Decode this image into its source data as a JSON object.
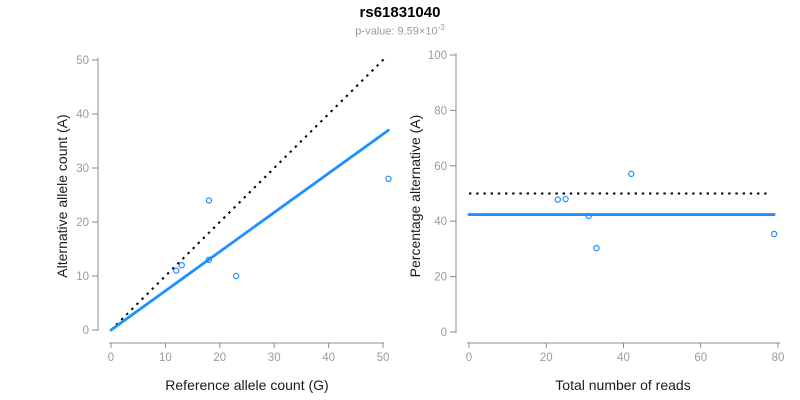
{
  "colors": {
    "accent_blue": "#1E90FF",
    "dotted_line": "#000000",
    "axis_line": "#8C8C8C",
    "tick_label": "#9B9B9B",
    "axis_title": "#1A1A1A",
    "title": "#000000",
    "subtitle": "#9B9B9B"
  },
  "chart_data": [
    {
      "type": "scatter",
      "title": "rs61831040",
      "subtitle_text": "p-value: 9.59×10",
      "subtitle_exponent": "-3",
      "xlabel": "Reference allele count (G)",
      "ylabel": "Alternative allele count (A)",
      "xlim": [
        0,
        50
      ],
      "ylim": [
        0,
        50
      ],
      "xticks": [
        0,
        10,
        20,
        30,
        40,
        50
      ],
      "yticks": [
        0,
        10,
        20,
        30,
        40,
        50
      ],
      "grid": false,
      "legend": null,
      "points": [
        [
          12,
          11
        ],
        [
          13,
          12
        ],
        [
          18,
          13
        ],
        [
          18,
          24
        ],
        [
          23,
          10
        ],
        [
          51,
          28
        ]
      ],
      "lines": [
        {
          "name": "identity-line",
          "style": "dotted",
          "color_key": "dotted_line",
          "x1": 0,
          "y1": 0,
          "x2": 50.7,
          "y2": 50.7
        },
        {
          "name": "fit-line",
          "style": "solid",
          "color_key": "accent_blue",
          "x1": 0,
          "y1": 0,
          "x2": 51,
          "y2": 37
        }
      ]
    },
    {
      "type": "scatter",
      "xlabel": "Total number of reads",
      "ylabel": "Percentage alternative (A)",
      "xlim": [
        0,
        80
      ],
      "ylim": [
        0,
        100
      ],
      "xticks": [
        0,
        20,
        40,
        60,
        80
      ],
      "yticks": [
        0,
        20,
        40,
        60,
        80,
        100
      ],
      "grid": false,
      "legend": null,
      "points": [
        [
          23,
          47.8
        ],
        [
          25,
          48
        ],
        [
          31,
          41.9
        ],
        [
          33,
          30.3
        ],
        [
          42,
          57.1
        ],
        [
          79,
          35.4
        ]
      ],
      "lines": [
        {
          "name": "expected-50-line",
          "style": "dotted",
          "color_key": "dotted_line",
          "x1": 0,
          "y1": 50,
          "x2": 77.5,
          "y2": 50
        },
        {
          "name": "observed-percentage-line",
          "style": "solid",
          "color_key": "accent_blue",
          "x1": 0,
          "y1": 42.4,
          "x2": 79,
          "y2": 42.4
        }
      ]
    }
  ]
}
